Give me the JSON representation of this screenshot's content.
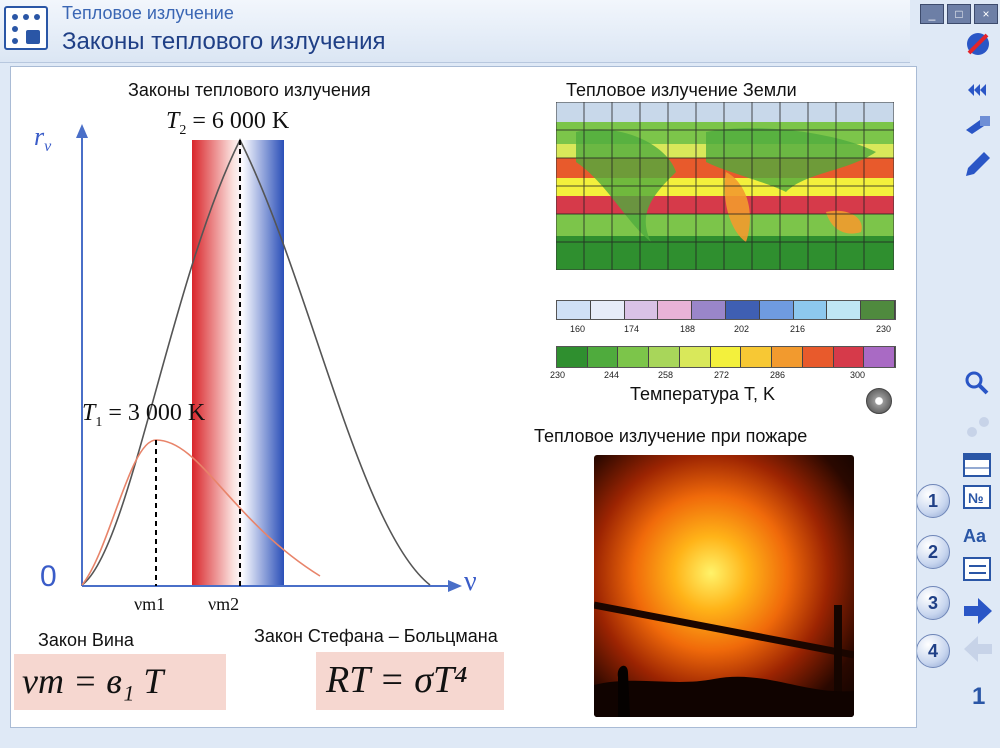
{
  "header": {
    "breadcrumb": "Тепловое излучение",
    "title": "Законы теплового излучения"
  },
  "window_buttons": [
    "_",
    "□",
    "×"
  ],
  "toolbar_icons": [
    "close-circle-icon",
    "sound-icon",
    "flashlight-icon",
    "pencil-icon",
    "zoom-icon",
    "gears-icon",
    "table-icon",
    "number-sign-icon",
    "font-icon",
    "list-icon",
    "arrow-right-icon",
    "arrow-left-icon"
  ],
  "toolbar_text": {
    "font": "Aa",
    "number": "№",
    "page_number": "1"
  },
  "tabs": [
    "1",
    "2",
    "3",
    "4"
  ],
  "graph": {
    "title": "Законы теплового излучения",
    "y_label": "r",
    "y_sub": "ν",
    "x_label": "ν",
    "origin": "0",
    "t2_label": "T",
    "t2_sub": "2",
    "t2_value": " = 6 000 K",
    "t1_label": "T",
    "t1_sub": "1",
    "t1_value": " = 3 000 K",
    "vm1": "νm1",
    "vm2": "νm2"
  },
  "laws": {
    "wien_title": "Закон Вина",
    "wien_formula": "νm = в₁ T",
    "stefan_title": "Закон Стефана – Больцмана",
    "stefan_formula": "RT = σT⁴"
  },
  "earth": {
    "title": "Тепловое излучение  Земли",
    "scale1_ticks": [
      "160",
      "174",
      "188",
      "202",
      "216",
      "230"
    ],
    "scale2_ticks": [
      "230",
      "244",
      "258",
      "272",
      "286",
      "300"
    ],
    "temperature_label": "Температура T, K",
    "scale1_colors": [
      "#cfe0f5",
      "#e6ecf8",
      "#d9c2e6",
      "#e8b3d8",
      "#9a86c9",
      "#3f5fb3",
      "#6f9be0",
      "#8dc8ee",
      "#bfe6f4",
      "#4f8a3e"
    ],
    "scale2_colors": [
      "#2f8f2f",
      "#4fab3d",
      "#7cc54a",
      "#a8d65a",
      "#d9e85a",
      "#f3f03c",
      "#f7c834",
      "#f29a2e",
      "#e85a2c",
      "#d63a4a",
      "#a96ac4"
    ]
  },
  "fire": {
    "title": "Тепловое излучение при пожаре"
  }
}
